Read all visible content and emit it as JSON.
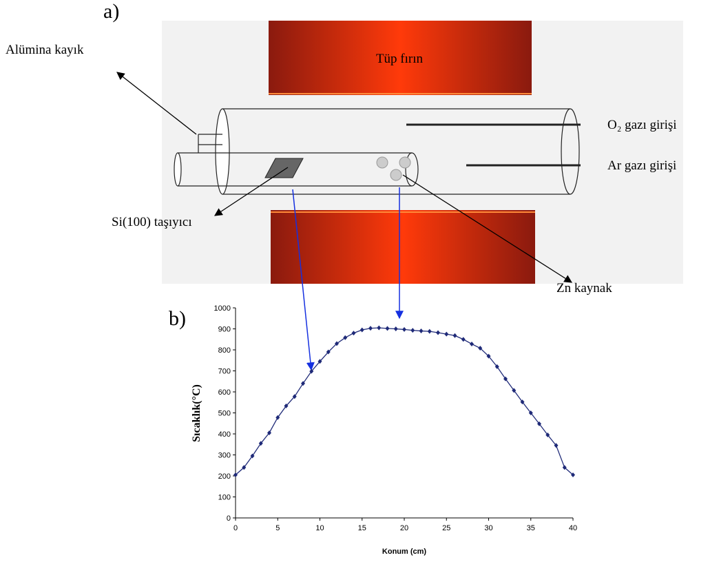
{
  "diagram": {
    "panel_a": "a)",
    "panel_b": "b)",
    "labels": {
      "boat": "Alümina kayık",
      "furnace": "Tüp fırın",
      "o2": "O₂ gazı girişi",
      "ar": "Ar gazı girişi",
      "substrate": "Si(100) taşıyıcı",
      "source": "Zn kaynak"
    }
  },
  "chart_data": {
    "type": "line",
    "x_label": "Konum (cm)",
    "y_label": "Sıcaklık(°C)",
    "color": "#1f2a78",
    "x": [
      0,
      1,
      2,
      3,
      4,
      5,
      6,
      7,
      8,
      9,
      10,
      11,
      12,
      13,
      14,
      15,
      16,
      17,
      18,
      19,
      20,
      21,
      22,
      23,
      24,
      25,
      26,
      27,
      28,
      29,
      30,
      31,
      32,
      33,
      34,
      35,
      36,
      37,
      38,
      39,
      40
    ],
    "values": [
      205,
      240,
      295,
      355,
      405,
      478,
      533,
      578,
      640,
      698,
      745,
      790,
      830,
      858,
      880,
      895,
      903,
      905,
      902,
      900,
      897,
      893,
      890,
      888,
      882,
      875,
      868,
      850,
      828,
      808,
      770,
      720,
      662,
      607,
      552,
      500,
      448,
      395,
      345,
      240,
      205
    ],
    "xlim": [
      0,
      40
    ],
    "ylim": [
      0,
      1000
    ],
    "xticks": [
      0,
      5,
      10,
      15,
      20,
      25,
      30,
      35,
      40
    ],
    "yticks": [
      0,
      100,
      200,
      300,
      400,
      500,
      600,
      700,
      800,
      900,
      1000
    ]
  }
}
